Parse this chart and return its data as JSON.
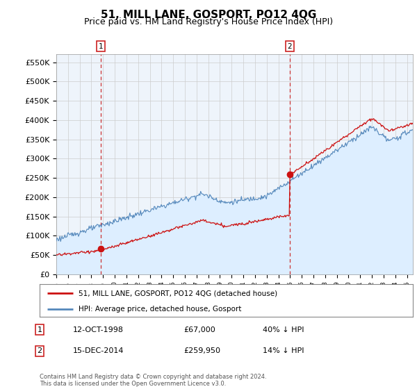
{
  "title": "51, MILL LANE, GOSPORT, PO12 4QG",
  "subtitle": "Price paid vs. HM Land Registry's House Price Index (HPI)",
  "ylabel_ticks": [
    "£0",
    "£50K",
    "£100K",
    "£150K",
    "£200K",
    "£250K",
    "£300K",
    "£350K",
    "£400K",
    "£450K",
    "£500K",
    "£550K"
  ],
  "ytick_values": [
    0,
    50000,
    100000,
    150000,
    200000,
    250000,
    300000,
    350000,
    400000,
    450000,
    500000,
    550000
  ],
  "xmin": 1995.0,
  "xmax": 2025.5,
  "ymin": 0,
  "ymax": 570000,
  "sale1_date": 1998.79,
  "sale1_price": 67000,
  "sale1_label": "1",
  "sale2_date": 2014.96,
  "sale2_price": 259950,
  "sale2_label": "2",
  "hpi_color": "#5588bb",
  "hpi_fill_color": "#ddeeff",
  "price_color": "#cc1111",
  "vline_color": "#cc3333",
  "grid_color": "#cccccc",
  "background_color": "#ffffff",
  "plot_bg_color": "#eef4fb",
  "legend_label1": "51, MILL LANE, GOSPORT, PO12 4QG (detached house)",
  "legend_label2": "HPI: Average price, detached house, Gosport",
  "table_row1": [
    "1",
    "12-OCT-1998",
    "£67,000",
    "40% ↓ HPI"
  ],
  "table_row2": [
    "2",
    "15-DEC-2014",
    "£259,950",
    "14% ↓ HPI"
  ],
  "footer": "Contains HM Land Registry data © Crown copyright and database right 2024.\nThis data is licensed under the Open Government Licence v3.0.",
  "title_fontsize": 11,
  "subtitle_fontsize": 9,
  "tick_fontsize": 8
}
